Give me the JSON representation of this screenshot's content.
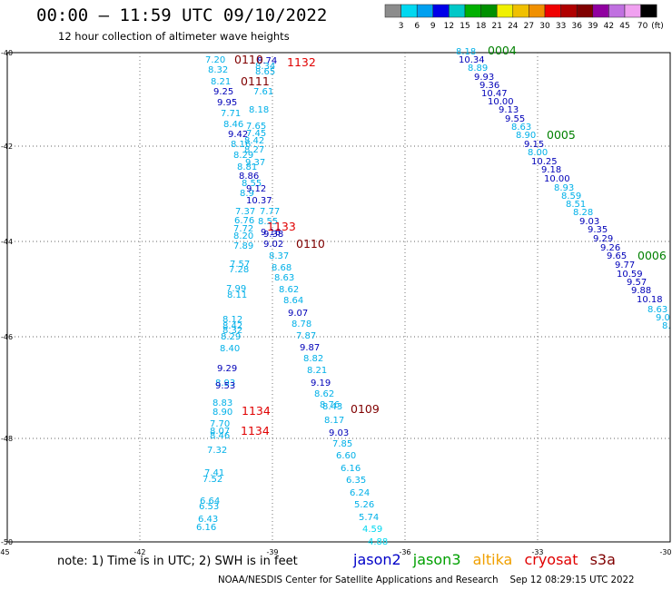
{
  "title": "00:00 – 11:59 UTC 09/10/2022",
  "subtitle": "12 hour collection of altimeter wave heights",
  "units_label": "(ft)",
  "scale": {
    "labels": [
      "3",
      "6",
      "9",
      "12",
      "15",
      "18",
      "21",
      "24",
      "27",
      "30",
      "33",
      "36",
      "39",
      "42",
      "45",
      "70"
    ],
    "colors": [
      "#8c8c8c",
      "#00d8f0",
      "#00a0f0",
      "#0000e8",
      "#00c8c8",
      "#00b000",
      "#009000",
      "#f0f000",
      "#f0c000",
      "#f09000",
      "#f00000",
      "#b00000",
      "#800000",
      "#9000a0",
      "#c070e0",
      "#f0a0f0",
      "#000000"
    ]
  },
  "axes": {
    "lat_labels": [
      "-40",
      "-42",
      "-44",
      "-46",
      "-48",
      "-50"
    ],
    "lon_labels": [
      "-45",
      "-42",
      "-39",
      "-36",
      "-33",
      "-30"
    ]
  },
  "tracks": [
    {
      "label": "0004",
      "color": "#008000"
    },
    {
      "label": "0005",
      "color": "#008000"
    },
    {
      "label": "0006",
      "color": "#008000"
    },
    {
      "label": "0110",
      "color": "#800000"
    },
    {
      "label": "0109",
      "color": "#800000"
    },
    {
      "label": "0110",
      "color": "#800000"
    },
    {
      "label": "0111",
      "color": "#800000"
    },
    {
      "label": "1132",
      "color": "#e00000"
    },
    {
      "label": "1133",
      "color": "#e00000"
    },
    {
      "label": "1134",
      "color": "#e00000"
    },
    {
      "label": "1134",
      "color": "#e00000"
    }
  ],
  "observations": [
    {
      "v": "8.18",
      "c": "#00b0e8"
    },
    {
      "v": "10.34",
      "c": "#0000b8"
    },
    {
      "v": "8.89",
      "c": "#00b0e8"
    },
    {
      "v": "9.93",
      "c": "#0000b8"
    },
    {
      "v": "9.36",
      "c": "#0000b8"
    },
    {
      "v": "10.47",
      "c": "#0000b8"
    },
    {
      "v": "10.00",
      "c": "#0000b8"
    },
    {
      "v": "9.13",
      "c": "#0000b8"
    },
    {
      "v": "9.55",
      "c": "#0000b8"
    },
    {
      "v": "8.63",
      "c": "#00b0e8"
    },
    {
      "v": "8.90",
      "c": "#00b0e8"
    },
    {
      "v": "9.15",
      "c": "#0000b8"
    },
    {
      "v": "8.00",
      "c": "#00b0e8"
    },
    {
      "v": "10.25",
      "c": "#0000b8"
    },
    {
      "v": "9.18",
      "c": "#0000b8"
    },
    {
      "v": "10.00",
      "c": "#0000b8"
    },
    {
      "v": "8.93",
      "c": "#00b0e8"
    },
    {
      "v": "8.59",
      "c": "#00b0e8"
    },
    {
      "v": "8.51",
      "c": "#00b0e8"
    },
    {
      "v": "8.28",
      "c": "#00b0e8"
    },
    {
      "v": "9.03",
      "c": "#0000b8"
    },
    {
      "v": "9.35",
      "c": "#0000b8"
    },
    {
      "v": "9.29",
      "c": "#0000b8"
    },
    {
      "v": "9.26",
      "c": "#0000b8"
    },
    {
      "v": "9.65",
      "c": "#0000b8"
    },
    {
      "v": "9.77",
      "c": "#0000b8"
    },
    {
      "v": "10.59",
      "c": "#0000b8"
    },
    {
      "v": "9.57",
      "c": "#0000b8"
    },
    {
      "v": "9.88",
      "c": "#0000b8"
    },
    {
      "v": "10.18",
      "c": "#0000b8"
    },
    {
      "v": "8.63",
      "c": "#00b0e8"
    },
    {
      "v": "9.0",
      "c": "#00b0e8"
    },
    {
      "v": "8.",
      "c": "#00b0e8"
    },
    {
      "v": "7.20",
      "c": "#00b0e8"
    },
    {
      "v": "8.32",
      "c": "#00b0e8"
    },
    {
      "v": "8.21",
      "c": "#00b0e8"
    },
    {
      "v": "9.25",
      "c": "#0000b8"
    },
    {
      "v": "9.95",
      "c": "#0000b8"
    },
    {
      "v": "7.71",
      "c": "#00b0e8"
    },
    {
      "v": "8.46",
      "c": "#00b0e8"
    },
    {
      "v": "9.42",
      "c": "#0000b8"
    },
    {
      "v": "8.16",
      "c": "#00b0e8"
    },
    {
      "v": "8.29",
      "c": "#00b0e8"
    },
    {
      "v": "8.81",
      "c": "#00b0e8"
    },
    {
      "v": "8.86",
      "c": "#0000b8"
    },
    {
      "v": "8.55",
      "c": "#00b0e8"
    },
    {
      "v": "8.9",
      "c": "#00b0e8"
    },
    {
      "v": "7.37",
      "c": "#00b0e8"
    },
    {
      "v": "6.76",
      "c": "#00b0e8"
    },
    {
      "v": "7.72",
      "c": "#00b0e8"
    },
    {
      "v": "8.20",
      "c": "#00b0e8"
    },
    {
      "v": "7.89",
      "c": "#00b0e8"
    },
    {
      "v": "7.57",
      "c": "#00b0e8"
    },
    {
      "v": "7.28",
      "c": "#00b0e8"
    },
    {
      "v": "7.99",
      "c": "#00b0e8"
    },
    {
      "v": "8.11",
      "c": "#00b0e8"
    },
    {
      "v": "8.12",
      "c": "#00b0e8"
    },
    {
      "v": "8.42",
      "c": "#00b0e8"
    },
    {
      "v": "8.32",
      "c": "#00b0e8"
    },
    {
      "v": "8.29",
      "c": "#00b0e8"
    },
    {
      "v": "8.40",
      "c": "#00b0e8"
    },
    {
      "v": "9.29",
      "c": "#0000b8"
    },
    {
      "v": "8.93",
      "c": "#00b0e8"
    },
    {
      "v": "9.53",
      "c": "#0000b8"
    },
    {
      "v": "8.83",
      "c": "#00b0e8"
    },
    {
      "v": "8.90",
      "c": "#00b0e8"
    },
    {
      "v": "7.70",
      "c": "#00b0e8"
    },
    {
      "v": "8.07",
      "c": "#00b0e8"
    },
    {
      "v": "8.46",
      "c": "#00b0e8"
    },
    {
      "v": "7.32",
      "c": "#00b0e8"
    },
    {
      "v": "7.41",
      "c": "#00b0e8"
    },
    {
      "v": "7.52",
      "c": "#00b0e8"
    },
    {
      "v": "6.64",
      "c": "#00b0e8"
    },
    {
      "v": "6.53",
      "c": "#00b0e8"
    },
    {
      "v": "6.43",
      "c": "#00b0e8"
    },
    {
      "v": "6.16",
      "c": "#00b0e8"
    },
    {
      "v": "8.74",
      "c": "#0000b8"
    },
    {
      "v": "8.34",
      "c": "#00b0e8"
    },
    {
      "v": "8.65",
      "c": "#00b0e8"
    },
    {
      "v": "7.61",
      "c": "#00b0e8"
    },
    {
      "v": "8.18",
      "c": "#00b0e8"
    },
    {
      "v": "7.65",
      "c": "#00b0e8"
    },
    {
      "v": "7.45",
      "c": "#00b0e8"
    },
    {
      "v": "8.42",
      "c": "#00b0e8"
    },
    {
      "v": "8.27",
      "c": "#00b0e8"
    },
    {
      "v": "9.37",
      "c": "#00b0e8"
    },
    {
      "v": "9.12",
      "c": "#0000b8"
    },
    {
      "v": "10.37",
      "c": "#0000b8"
    },
    {
      "v": "7.77",
      "c": "#00b0e8"
    },
    {
      "v": "8.55",
      "c": "#00b0e8"
    },
    {
      "v": "9.16",
      "c": "#0000b8"
    },
    {
      "v": "9.38",
      "c": "#0000b8"
    },
    {
      "v": "9.02",
      "c": "#0000b8"
    },
    {
      "v": "8.37",
      "c": "#00b0e8"
    },
    {
      "v": "8.68",
      "c": "#00b0e8"
    },
    {
      "v": "8.63",
      "c": "#00b0e8"
    },
    {
      "v": "8.62",
      "c": "#00b0e8"
    },
    {
      "v": "8.64",
      "c": "#00b0e8"
    },
    {
      "v": "9.07",
      "c": "#0000b8"
    },
    {
      "v": "8.78",
      "c": "#00b0e8"
    },
    {
      "v": "7.87",
      "c": "#00b0e8"
    },
    {
      "v": "9.87",
      "c": "#0000b8"
    },
    {
      "v": "8.82",
      "c": "#00b0e8"
    },
    {
      "v": "8.21",
      "c": "#00b0e8"
    },
    {
      "v": "9.19",
      "c": "#0000b8"
    },
    {
      "v": "8.62",
      "c": "#00b0e8"
    },
    {
      "v": "8.76",
      "c": "#00b0e8"
    },
    {
      "v": "8.43",
      "c": "#00b0e8"
    },
    {
      "v": "8.17",
      "c": "#00b0e8"
    },
    {
      "v": "9.03",
      "c": "#0000b8"
    },
    {
      "v": "7.85",
      "c": "#00b0e8"
    },
    {
      "v": "6.60",
      "c": "#00b0e8"
    },
    {
      "v": "6.16",
      "c": "#00b0e8"
    },
    {
      "v": "6.35",
      "c": "#00b0e8"
    },
    {
      "v": "6.24",
      "c": "#00b0e8"
    },
    {
      "v": "5.26",
      "c": "#00b0e8"
    },
    {
      "v": "5.74",
      "c": "#00b0e8"
    },
    {
      "v": "4.59",
      "c": "#00d8f0"
    },
    {
      "v": "4.88",
      "c": "#00d8f0"
    }
  ],
  "footer_note": "note:  1) Time is in UTC; 2) SWH is in feet",
  "legend": [
    {
      "name": "jason2",
      "color": "#0000c8"
    },
    {
      "name": "jason3",
      "color": "#00a000"
    },
    {
      "name": "altika",
      "color": "#f0a000"
    },
    {
      "name": "cryosat",
      "color": "#e00000"
    },
    {
      "name": "s3a",
      "color": "#800000"
    }
  ],
  "credit": "NOAA/NESDIS Center for Satellite Applications and Research    Sep 12 08:29:15 UTC 2022"
}
